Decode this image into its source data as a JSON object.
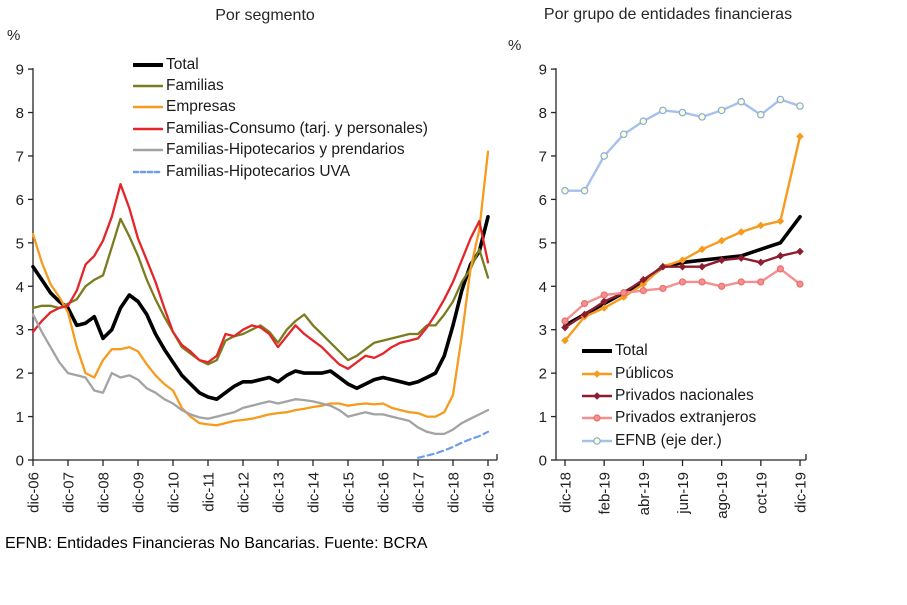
{
  "figure": {
    "footnote": "EFNB: Entidades Financieras No Bancarias. Fuente: BCRA"
  },
  "chart_data": [
    {
      "type": "line",
      "title": "Por segmento",
      "ylabel": "%",
      "ylim": [
        0,
        9
      ],
      "yticks": [
        0,
        1,
        2,
        3,
        4,
        5,
        6,
        7,
        8,
        9
      ],
      "grid": false,
      "legend_position": "upper center",
      "x_start": "dic-06",
      "x_end": "dic-19",
      "points_per_year": 4,
      "x_tick_labels": [
        "dic-06",
        "dic-07",
        "dic-08",
        "dic-09",
        "dic-10",
        "dic-11",
        "dic-12",
        "dic-13",
        "dic-14",
        "dic-15",
        "dic-16",
        "dic-17",
        "dic-18",
        "dic-19"
      ],
      "series": [
        {
          "name": "Total",
          "color": "#000000",
          "width": 3.6,
          "dash": null,
          "marker": null,
          "values": [
            4.45,
            4.15,
            3.85,
            3.65,
            3.5,
            3.1,
            3.15,
            3.3,
            2.8,
            3.0,
            3.5,
            3.8,
            3.65,
            3.35,
            2.9,
            2.55,
            2.25,
            1.95,
            1.75,
            1.55,
            1.45,
            1.4,
            1.55,
            1.7,
            1.8,
            1.8,
            1.85,
            1.9,
            1.8,
            1.95,
            2.05,
            2.0,
            2.0,
            2.0,
            2.05,
            1.9,
            1.75,
            1.65,
            1.75,
            1.85,
            1.9,
            1.85,
            1.8,
            1.75,
            1.8,
            1.9,
            2.0,
            2.4,
            3.1,
            3.9,
            4.5,
            4.8,
            5.6
          ]
        },
        {
          "name": "Familias",
          "color": "#7a7d1e",
          "width": 2.3,
          "dash": null,
          "marker": null,
          "values": [
            3.5,
            3.55,
            3.55,
            3.5,
            3.6,
            3.7,
            4.0,
            4.15,
            4.25,
            4.9,
            5.55,
            5.15,
            4.7,
            4.15,
            3.7,
            3.3,
            2.95,
            2.6,
            2.45,
            2.3,
            2.2,
            2.3,
            2.75,
            2.85,
            2.9,
            3.0,
            3.1,
            2.95,
            2.7,
            3.0,
            3.2,
            3.35,
            3.1,
            2.9,
            2.7,
            2.5,
            2.3,
            2.4,
            2.55,
            2.7,
            2.75,
            2.8,
            2.85,
            2.9,
            2.9,
            3.1,
            3.1,
            3.35,
            3.65,
            4.1,
            4.4,
            4.85,
            4.2
          ]
        },
        {
          "name": "Empresas",
          "color": "#f79b1f",
          "width": 2.3,
          "dash": null,
          "marker": null,
          "values": [
            5.2,
            4.55,
            4.05,
            3.75,
            3.4,
            2.6,
            2.0,
            1.9,
            2.3,
            2.55,
            2.55,
            2.6,
            2.5,
            2.2,
            1.95,
            1.75,
            1.6,
            1.2,
            1.0,
            0.85,
            0.82,
            0.8,
            0.85,
            0.9,
            0.92,
            0.95,
            1.0,
            1.05,
            1.08,
            1.1,
            1.15,
            1.18,
            1.22,
            1.25,
            1.3,
            1.3,
            1.25,
            1.28,
            1.3,
            1.28,
            1.3,
            1.2,
            1.15,
            1.1,
            1.08,
            1.0,
            1.0,
            1.1,
            1.5,
            2.85,
            4.4,
            5.3,
            7.1
          ]
        },
        {
          "name": "Familias-Consumo (tarj. y personales)",
          "color": "#e4262b",
          "width": 2.3,
          "dash": null,
          "marker": null,
          "values": [
            2.95,
            3.2,
            3.4,
            3.5,
            3.55,
            3.9,
            4.5,
            4.7,
            5.05,
            5.6,
            6.35,
            5.8,
            5.1,
            4.6,
            4.1,
            3.5,
            2.95,
            2.65,
            2.5,
            2.3,
            2.25,
            2.4,
            2.9,
            2.85,
            3.0,
            3.1,
            3.05,
            2.9,
            2.6,
            2.85,
            3.1,
            2.9,
            2.75,
            2.6,
            2.4,
            2.2,
            2.1,
            2.25,
            2.4,
            2.35,
            2.45,
            2.6,
            2.7,
            2.75,
            2.8,
            3.05,
            3.35,
            3.7,
            4.1,
            4.6,
            5.1,
            5.5,
            4.55
          ]
        },
        {
          "name": "Familias-Hipotecarios y prendarios",
          "color": "#a3a3a3",
          "width": 2.3,
          "dash": null,
          "marker": null,
          "values": [
            3.35,
            2.95,
            2.6,
            2.25,
            2.0,
            1.95,
            1.9,
            1.6,
            1.55,
            2.0,
            1.9,
            1.95,
            1.85,
            1.65,
            1.55,
            1.4,
            1.3,
            1.15,
            1.05,
            0.98,
            0.95,
            1.0,
            1.05,
            1.1,
            1.2,
            1.25,
            1.3,
            1.35,
            1.3,
            1.35,
            1.4,
            1.38,
            1.35,
            1.3,
            1.25,
            1.15,
            1.0,
            1.05,
            1.1,
            1.05,
            1.05,
            1.0,
            0.95,
            0.9,
            0.75,
            0.65,
            0.6,
            0.6,
            0.7,
            0.85,
            0.95,
            1.05,
            1.15
          ]
        },
        {
          "name": "Familias-Hipotecarios UVA",
          "color": "#6f9ceb",
          "width": 2.2,
          "dash": "6,4",
          "marker": null,
          "values": [
            null,
            null,
            null,
            null,
            null,
            null,
            null,
            null,
            null,
            null,
            null,
            null,
            null,
            null,
            null,
            null,
            null,
            null,
            null,
            null,
            null,
            null,
            null,
            null,
            null,
            null,
            null,
            null,
            null,
            null,
            null,
            null,
            null,
            null,
            null,
            null,
            null,
            null,
            null,
            null,
            null,
            null,
            null,
            null,
            0.05,
            0.1,
            0.15,
            0.22,
            0.3,
            0.4,
            0.48,
            0.55,
            0.65
          ]
        }
      ]
    },
    {
      "type": "line",
      "title": "Por grupo de entidades financieras",
      "ylabel": "%",
      "ylim": [
        0,
        9
      ],
      "yticks": [
        0,
        1,
        2,
        3,
        4,
        5,
        6,
        7,
        8,
        9
      ],
      "grid": false,
      "legend_position": "lower center",
      "x_start": "dic-18",
      "x_end": "dic-19",
      "points_per_month": 1,
      "x_tick_labels": [
        "dic-18",
        "feb-19",
        "abr-19",
        "jun-19",
        "ago-19",
        "oct-19",
        "dic-19"
      ],
      "series": [
        {
          "name": "Total",
          "color": "#000000",
          "width": 3.6,
          "dash": null,
          "marker": null,
          "values": [
            3.1,
            3.35,
            3.6,
            3.85,
            4.1,
            4.45,
            4.55,
            4.6,
            4.65,
            4.7,
            4.85,
            5.0,
            5.6
          ]
        },
        {
          "name": "Públicos",
          "color": "#f79b1f",
          "width": 2.4,
          "dash": null,
          "marker": {
            "shape": "diamond",
            "fill": "#f79b1f",
            "stroke": "#f79b1f",
            "size": 3.1
          },
          "values": [
            2.75,
            3.3,
            3.5,
            3.75,
            4.05,
            4.45,
            4.6,
            4.85,
            5.05,
            5.25,
            5.4,
            5.5,
            7.45
          ]
        },
        {
          "name": "Privados nacionales",
          "color": "#8e1c2e",
          "width": 2.4,
          "dash": null,
          "marker": {
            "shape": "diamond",
            "fill": "#8e1c2e",
            "stroke": "#8e1c2e",
            "size": 3.1
          },
          "values": [
            3.05,
            3.35,
            3.65,
            3.85,
            4.15,
            4.45,
            4.45,
            4.45,
            4.6,
            4.65,
            4.55,
            4.7,
            4.8
          ]
        },
        {
          "name": "Privados extranjeros",
          "color": "#f4908f",
          "width": 2.4,
          "dash": null,
          "marker": {
            "shape": "circle",
            "fill": "#f4908f",
            "stroke": "#e9706e",
            "size": 3.0
          },
          "values": [
            3.2,
            3.6,
            3.8,
            3.85,
            3.9,
            3.95,
            4.1,
            4.1,
            4.0,
            4.1,
            4.1,
            4.4,
            4.05
          ]
        },
        {
          "name": "EFNB (eje der.)",
          "color": "#a5c1ec",
          "width": 2.4,
          "dash": null,
          "marker": {
            "shape": "circle",
            "fill": "#fdfdd0",
            "stroke": "#85abe0",
            "size": 3.2
          },
          "values": [
            6.2,
            6.2,
            7.0,
            7.5,
            7.8,
            8.05,
            8.0,
            7.9,
            8.05,
            8.25,
            7.95,
            8.3,
            8.15
          ]
        }
      ]
    }
  ]
}
